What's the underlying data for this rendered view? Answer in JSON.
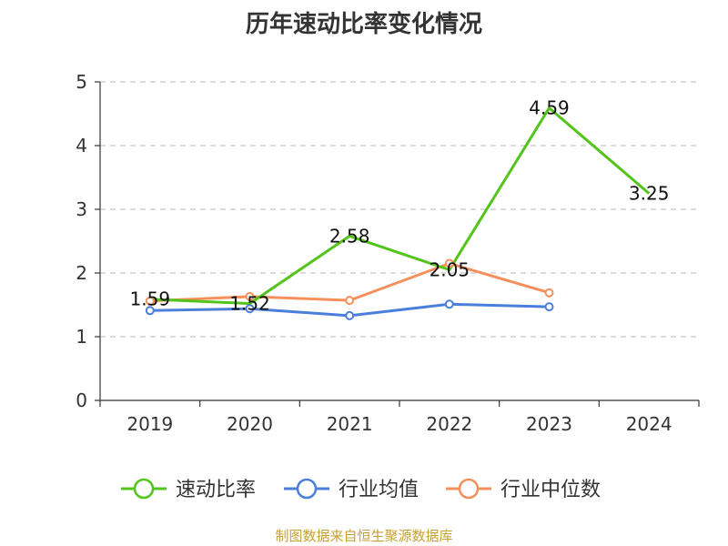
{
  "colors": {
    "speed": "#52c41a",
    "avg": "#4a7fdc",
    "median": "#f5905a",
    "grid": "#c8c8c8",
    "axis": "#333333",
    "source": "#c8a030"
  },
  "source_text": "制图数据来自恒生聚源数据库",
  "chart_data": {
    "type": "line",
    "title": "历年速动比率变化情况",
    "xlabel": "",
    "ylabel": "",
    "x": [
      "2019",
      "2020",
      "2021",
      "2022",
      "2023",
      "2024"
    ],
    "ylim": [
      0,
      5
    ],
    "yticks": [
      0,
      1,
      2,
      3,
      4,
      5
    ],
    "grid": true,
    "legend_position": "bottom",
    "series": [
      {
        "name": "速动比率",
        "values": [
          1.59,
          1.52,
          2.58,
          2.05,
          4.59,
          3.25
        ],
        "labels": [
          "1.59",
          "1.52",
          "2.58",
          "2.05",
          "4.59",
          "3.25"
        ],
        "color": "#52c41a"
      },
      {
        "name": "行业均值",
        "values": [
          1.41,
          1.44,
          1.33,
          1.51,
          1.47,
          null
        ],
        "color": "#4a7fdc"
      },
      {
        "name": "行业中位数",
        "values": [
          1.56,
          1.63,
          1.57,
          2.15,
          1.69,
          null
        ],
        "color": "#f5905a"
      }
    ]
  }
}
